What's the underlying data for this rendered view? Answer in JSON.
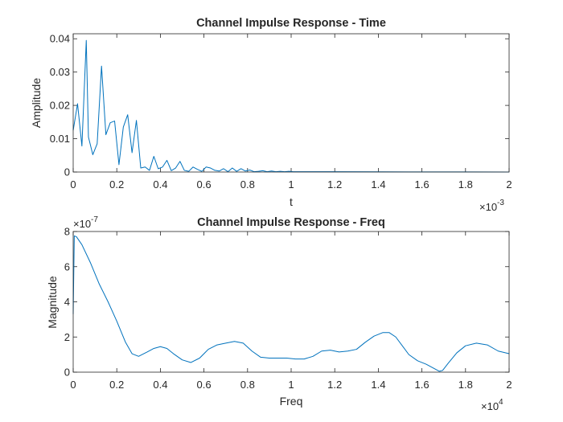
{
  "chart_data": [
    {
      "type": "line",
      "title": "Channel Impulse Response - Time",
      "xlabel": "t",
      "ylabel": "Amplitude",
      "x_exponent_label": "×10",
      "x_exponent_power": "-3",
      "x_scale": 0.001,
      "xlim": [
        0,
        0.002
      ],
      "ylim": [
        0,
        0.0415
      ],
      "grid": false,
      "line_color": "#0072bd",
      "x_ticks": [
        "0",
        "0.2",
        "0.4",
        "0.6",
        "0.8",
        "1",
        "1.2",
        "1.4",
        "1.6",
        "1.8",
        "2"
      ],
      "y_ticks": [
        "0",
        "0.01",
        "0.02",
        "0.03",
        "0.04"
      ],
      "series": [
        {
          "x": [
            0,
            2e-05,
            4e-05,
            6e-05,
            7e-05,
            9e-05,
            0.00011,
            0.00013,
            0.00015,
            0.00017,
            0.00019,
            0.00021,
            0.00023,
            0.00025,
            0.00027,
            0.00029,
            0.00031,
            0.00033,
            0.00035,
            0.00037,
            0.00039,
            0.00041,
            0.00043,
            0.00045,
            0.00047,
            0.00049,
            0.00051,
            0.00053,
            0.00055,
            0.00057,
            0.00059,
            0.00061,
            0.00063,
            0.00065,
            0.00067,
            0.00069,
            0.00071,
            0.00073,
            0.00075,
            0.00077,
            0.00079,
            0.00081,
            0.00083,
            0.00085,
            0.00087,
            0.00089,
            0.00091,
            0.00093,
            0.00095,
            0.00097,
            0.00099,
            0.00101,
            0.00103,
            0.00105,
            0.0011,
            0.0012,
            0.0014,
            0.0016,
            0.0018,
            0.002
          ],
          "y": [
            0.0125,
            0.0205,
            0.0078,
            0.0395,
            0.0105,
            0.0052,
            0.0085,
            0.0318,
            0.0112,
            0.0148,
            0.0153,
            0.0022,
            0.0135,
            0.0172,
            0.0058,
            0.0155,
            0.0012,
            0.0015,
            0.0005,
            0.0047,
            0.001,
            0.0015,
            0.0035,
            0.0004,
            0.0012,
            0.0032,
            0.0005,
            0.0002,
            0.0015,
            0.0008,
            0.0002,
            0.0015,
            0.0012,
            0.0005,
            0.0003,
            0.001,
            0.0001,
            0.0012,
            0.0002,
            0.001,
            0.0003,
            0.0006,
            0.0001,
            0.0002,
            0.0004,
            0.0001,
            0.0003,
            0.0001,
            0.0002,
            0.0001,
            0.0002,
            0.0001,
            0.0001,
            0.0001,
            0.0001,
            0.0001,
            5e-05,
            3e-05,
            2e-05,
            1e-05
          ]
        }
      ]
    },
    {
      "type": "line",
      "title": "Channel Impulse Response - Freq",
      "xlabel": "Freq",
      "ylabel": "Magnitude",
      "x_exponent_label": "×10",
      "x_exponent_power": "4",
      "y_exponent_label": "×10",
      "y_exponent_power": "-7",
      "x_scale": 10000,
      "y_scale": 1e-07,
      "xlim": [
        0,
        20000
      ],
      "ylim": [
        0,
        8e-07
      ],
      "grid": false,
      "line_color": "#0072bd",
      "x_ticks": [
        "0",
        "0.2",
        "0.4",
        "0.6",
        "0.8",
        "1",
        "1.2",
        "1.4",
        "1.6",
        "1.8",
        "2"
      ],
      "y_ticks": [
        "0",
        "2",
        "4",
        "6",
        "8"
      ],
      "series": [
        {
          "x": [
            0,
            50,
            150,
            400,
            800,
            1200,
            1600,
            2000,
            2400,
            2700,
            3000,
            3400,
            3700,
            4000,
            4300,
            4600,
            5000,
            5400,
            5800,
            6200,
            6600,
            7000,
            7400,
            7800,
            8200,
            8600,
            9000,
            9400,
            9800,
            10200,
            10600,
            11000,
            11400,
            11800,
            12200,
            12600,
            13000,
            13400,
            13800,
            14200,
            14500,
            14800,
            15100,
            15400,
            15800,
            16200,
            16500,
            16800,
            16950,
            17200,
            17600,
            18000,
            18500,
            19000,
            19500,
            20000
          ],
          "y": [
            3.3e-07,
            7.75e-07,
            7.7e-07,
            7.25e-07,
            6.2e-07,
            5e-07,
            4e-07,
            2.9e-07,
            1.7e-07,
            1.05e-07,
            9e-08,
            1.15e-07,
            1.35e-07,
            1.45e-07,
            1.35e-07,
            1.05e-07,
            7e-08,
            5.5e-08,
            8e-08,
            1.3e-07,
            1.55e-07,
            1.65e-07,
            1.75e-07,
            1.65e-07,
            1.2e-07,
            8.5e-08,
            8e-08,
            8e-08,
            8e-08,
            7.5e-08,
            7.5e-08,
            9e-08,
            1.2e-07,
            1.25e-07,
            1.15e-07,
            1.2e-07,
            1.3e-07,
            1.7e-07,
            2.05e-07,
            2.25e-07,
            2.25e-07,
            2e-07,
            1.5e-07,
            1e-07,
            6.5e-08,
            4.5e-08,
            2.5e-08,
            5e-09,
            1e-08,
            5e-08,
            1.1e-07,
            1.5e-07,
            1.65e-07,
            1.55e-07,
            1.2e-07,
            1.05e-07
          ]
        }
      ]
    }
  ]
}
